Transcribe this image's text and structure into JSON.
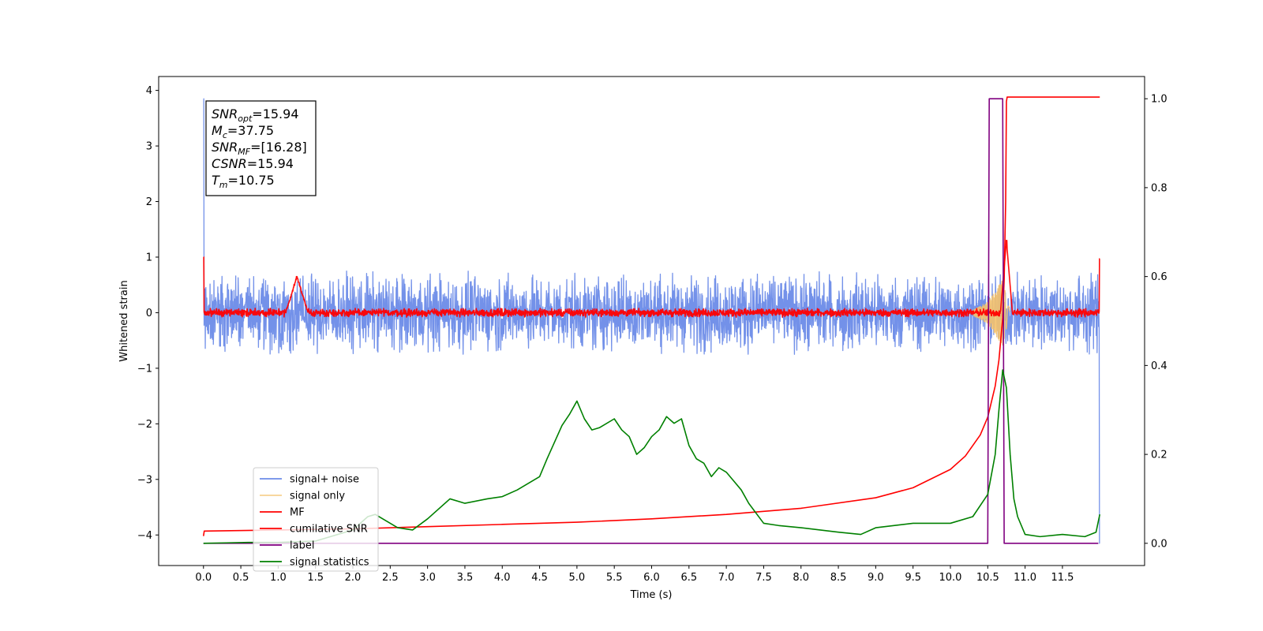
{
  "chart_data": {
    "type": "line",
    "xlabel": "Time (s)",
    "ylabel": "Whitened strain",
    "xlim": [
      -0.6,
      12.6
    ],
    "ylim": [
      -4.55,
      4.25
    ],
    "y2lim": [
      -0.05,
      1.05
    ],
    "xticks": [
      "0.0",
      "0.5",
      "1.0",
      "1.5",
      "2.0",
      "2.5",
      "3.0",
      "3.5",
      "4.0",
      "4.5",
      "5.0",
      "5.5",
      "6.0",
      "6.5",
      "7.0",
      "7.5",
      "8.0",
      "8.5",
      "9.0",
      "9.5",
      "10.0",
      "10.5",
      "11.0",
      "11.5"
    ],
    "yticks": [
      "4",
      "3",
      "2",
      "1",
      "0",
      "−1",
      "−2",
      "−3",
      "−4"
    ],
    "y2ticks": [
      "1.0",
      "0.8",
      "0.6",
      "0.4",
      "0.2",
      "0.0"
    ],
    "grid": false,
    "legend_position": "lower-left",
    "annotation": [
      {
        "base": "SNR",
        "sub": "opt",
        "value": "=15.94"
      },
      {
        "base": "M",
        "sub": "c",
        "value": "=37.75"
      },
      {
        "base": "SNR",
        "sub": "MF",
        "value": "=[16.28]"
      },
      {
        "base": "CSNR",
        "sub": "",
        "value": "=15.94"
      },
      {
        "base": "T",
        "sub": "m",
        "value": "=10.75"
      }
    ],
    "series": [
      {
        "name": "signal+ noise",
        "color": "#6b8be8",
        "axis": "left",
        "style": "noise",
        "x_range": [
          0,
          12.0
        ],
        "typical_amplitude": 0.75,
        "peak_values": [
          [
            0.0,
            3.85
          ],
          [
            12.0,
            -4.15
          ]
        ]
      },
      {
        "name": "signal only",
        "color": "#f5c26b",
        "axis": "left",
        "style": "chirp",
        "x": [
          10.3,
          10.5,
          10.6,
          10.7,
          10.75,
          10.8
        ],
        "envelope": [
          0.05,
          0.2,
          0.4,
          0.6,
          0.3,
          0.0
        ]
      },
      {
        "name": "MF",
        "color": "#ff0000",
        "axis": "left",
        "style": "noise",
        "x_range": [
          0,
          12.0
        ],
        "typical_amplitude": 0.08,
        "peak_values": [
          [
            0.0,
            1.0
          ],
          [
            1.25,
            0.65
          ],
          [
            10.75,
            1.3
          ],
          [
            12.0,
            0.97
          ]
        ]
      },
      {
        "name": "cumilative SNR",
        "color": "#ff0000",
        "axis": "left",
        "x": [
          0.0,
          0.01,
          1,
          2,
          3,
          4,
          5,
          6,
          7,
          8,
          9,
          9.5,
          10.0,
          10.2,
          10.4,
          10.5,
          10.6,
          10.65,
          10.7,
          10.72,
          10.74,
          10.75,
          10.76,
          12.0
        ],
        "y": [
          -4.02,
          -3.93,
          -3.91,
          -3.89,
          -3.85,
          -3.81,
          -3.77,
          -3.71,
          -3.63,
          -3.52,
          -3.33,
          -3.15,
          -2.82,
          -2.58,
          -2.2,
          -1.88,
          -1.32,
          -0.85,
          -0.1,
          0.6,
          2.0,
          3.8,
          3.88,
          3.88
        ]
      },
      {
        "name": "label",
        "color": "#800080",
        "axis": "right",
        "x": [
          0.0,
          10.5,
          10.52,
          10.7,
          10.72,
          11.98
        ],
        "y": [
          0.0,
          0.0,
          1.0,
          1.0,
          0.0,
          0.0
        ]
      },
      {
        "name": "signal statistics",
        "color": "#008000",
        "axis": "right",
        "x": [
          0.0,
          0.3,
          0.6,
          1.0,
          1.5,
          2.0,
          2.2,
          2.3,
          2.4,
          2.6,
          2.8,
          3.0,
          3.3,
          3.5,
          3.8,
          4.0,
          4.2,
          4.5,
          4.6,
          4.8,
          4.9,
          5.0,
          5.1,
          5.2,
          5.3,
          5.5,
          5.6,
          5.7,
          5.8,
          5.9,
          6.0,
          6.1,
          6.2,
          6.3,
          6.4,
          6.5,
          6.6,
          6.7,
          6.8,
          6.9,
          7.0,
          7.1,
          7.2,
          7.3,
          7.5,
          7.7,
          8.0,
          8.5,
          8.8,
          9.0,
          9.5,
          10.0,
          10.3,
          10.5,
          10.6,
          10.65,
          10.7,
          10.75,
          10.8,
          10.85,
          10.9,
          11.0,
          11.2,
          11.5,
          11.8,
          11.95,
          12.0
        ],
        "y": [
          0.0,
          0.001,
          0.002,
          0.002,
          0.005,
          0.03,
          0.06,
          0.065,
          0.055,
          0.035,
          0.03,
          0.055,
          0.1,
          0.09,
          0.1,
          0.105,
          0.12,
          0.15,
          0.19,
          0.265,
          0.29,
          0.32,
          0.28,
          0.255,
          0.26,
          0.28,
          0.255,
          0.24,
          0.2,
          0.215,
          0.24,
          0.255,
          0.285,
          0.27,
          0.28,
          0.22,
          0.19,
          0.18,
          0.15,
          0.17,
          0.16,
          0.14,
          0.12,
          0.09,
          0.045,
          0.04,
          0.035,
          0.025,
          0.02,
          0.035,
          0.045,
          0.045,
          0.06,
          0.11,
          0.2,
          0.3,
          0.39,
          0.35,
          0.2,
          0.1,
          0.06,
          0.02,
          0.015,
          0.02,
          0.015,
          0.025,
          0.065
        ]
      }
    ]
  }
}
